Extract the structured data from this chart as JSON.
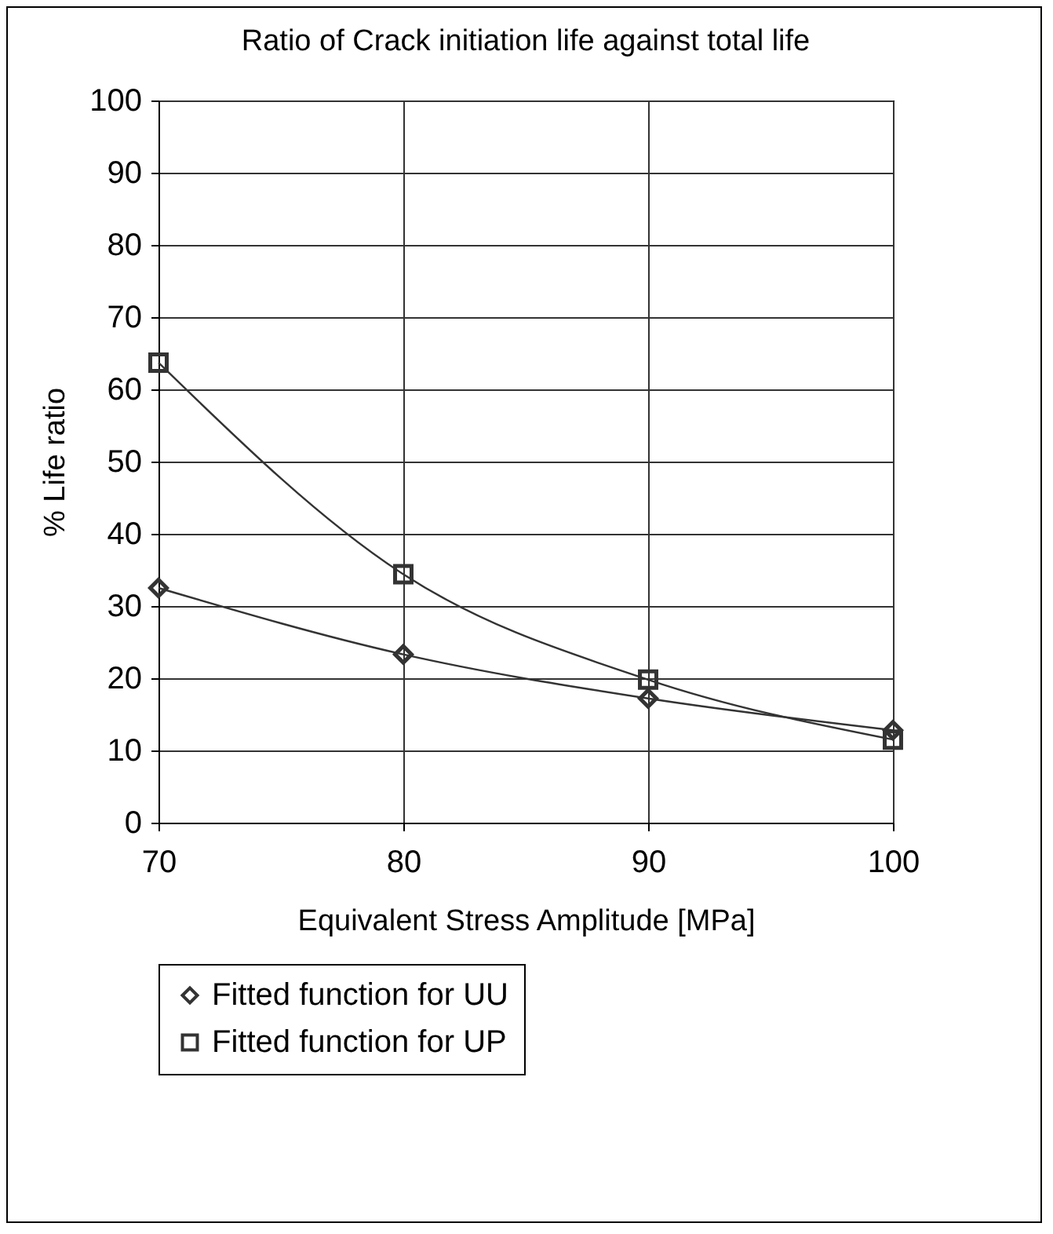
{
  "chart_data": {
    "type": "line",
    "title": "Ratio of Crack initiation life against total life",
    "xlabel": "Equivalent Stress Amplitude [MPa]",
    "ylabel": "% Life ratio",
    "x": [
      70,
      80,
      90,
      100
    ],
    "series": [
      {
        "name": "Fitted function for UU",
        "color": "#333333",
        "marker": "diamond",
        "values": [
          32.5,
          23.3,
          17.2,
          12.8
        ]
      },
      {
        "name": "Fitted function for UP",
        "color": "#333333",
        "marker": "square",
        "values": [
          63.7,
          34.4,
          19.8,
          11.5
        ]
      }
    ],
    "xlim": [
      70,
      100
    ],
    "xticks": [
      70,
      80,
      90,
      100
    ],
    "ylim": [
      0,
      100
    ],
    "yticks": [
      0,
      10,
      20,
      30,
      40,
      50,
      60,
      70,
      80,
      90,
      100
    ],
    "grid": true,
    "legend": "bottom",
    "line_style": "solid"
  }
}
